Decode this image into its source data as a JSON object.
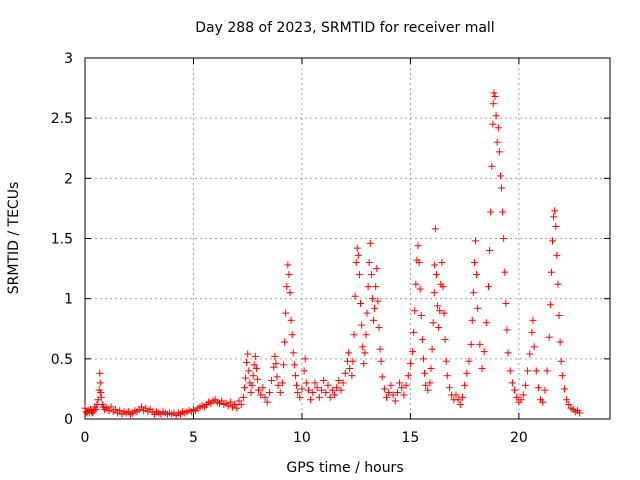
{
  "chart_data": {
    "type": "scatter",
    "title": "Day 288 of 2023, SRMTID for receiver mall",
    "xlabel": "GPS time / hours",
    "ylabel": "SRMTID / TECUs",
    "xlim": [
      0,
      24.2
    ],
    "ylim": [
      0,
      3
    ],
    "grid": true,
    "marker": "+",
    "color": "#ff0000",
    "x_ticks": [
      0,
      5,
      10,
      15,
      20
    ],
    "y_ticks": [
      0,
      0.5,
      1,
      1.5,
      2,
      2.5,
      3
    ],
    "x_tick_labels": [
      "0",
      "5",
      "10",
      "15",
      "20"
    ],
    "y_tick_labels": [
      "0",
      "0.5",
      "1",
      "1.5",
      "2",
      "2.5",
      "3"
    ],
    "series": [
      {
        "name": "SRMTID",
        "points": [
          [
            0.0,
            0.09
          ],
          [
            0.05,
            0.06
          ],
          [
            0.1,
            0.05
          ],
          [
            0.15,
            0.07
          ],
          [
            0.2,
            0.05
          ],
          [
            0.25,
            0.08
          ],
          [
            0.3,
            0.06
          ],
          [
            0.35,
            0.05
          ],
          [
            0.4,
            0.07
          ],
          [
            0.45,
            0.1
          ],
          [
            0.5,
            0.08
          ],
          [
            0.55,
            0.12
          ],
          [
            0.6,
            0.16
          ],
          [
            0.65,
            0.24
          ],
          [
            0.68,
            0.38
          ],
          [
            0.7,
            0.3
          ],
          [
            0.72,
            0.22
          ],
          [
            0.75,
            0.18
          ],
          [
            0.8,
            0.12
          ],
          [
            0.85,
            0.1
          ],
          [
            0.9,
            0.08
          ],
          [
            1.0,
            0.09
          ],
          [
            1.1,
            0.07
          ],
          [
            1.2,
            0.1
          ],
          [
            1.3,
            0.06
          ],
          [
            1.4,
            0.08
          ],
          [
            1.5,
            0.05
          ],
          [
            1.6,
            0.07
          ],
          [
            1.7,
            0.04
          ],
          [
            1.8,
            0.06
          ],
          [
            1.9,
            0.05
          ],
          [
            2.0,
            0.06
          ],
          [
            2.1,
            0.04
          ],
          [
            2.2,
            0.05
          ],
          [
            2.3,
            0.07
          ],
          [
            2.4,
            0.06
          ],
          [
            2.5,
            0.08
          ],
          [
            2.6,
            0.1
          ],
          [
            2.7,
            0.07
          ],
          [
            2.8,
            0.09
          ],
          [
            2.9,
            0.06
          ],
          [
            3.0,
            0.08
          ],
          [
            3.1,
            0.06
          ],
          [
            3.2,
            0.04
          ],
          [
            3.3,
            0.06
          ],
          [
            3.4,
            0.05
          ],
          [
            3.5,
            0.04
          ],
          [
            3.6,
            0.06
          ],
          [
            3.7,
            0.05
          ],
          [
            3.8,
            0.04
          ],
          [
            3.9,
            0.05
          ],
          [
            4.0,
            0.04
          ],
          [
            4.1,
            0.05
          ],
          [
            4.2,
            0.03
          ],
          [
            4.3,
            0.05
          ],
          [
            4.4,
            0.04
          ],
          [
            4.5,
            0.06
          ],
          [
            4.6,
            0.05
          ],
          [
            4.7,
            0.06
          ],
          [
            4.8,
            0.07
          ],
          [
            4.9,
            0.06
          ],
          [
            5.0,
            0.08
          ],
          [
            5.1,
            0.07
          ],
          [
            5.2,
            0.09
          ],
          [
            5.3,
            0.1
          ],
          [
            5.4,
            0.11
          ],
          [
            5.5,
            0.1
          ],
          [
            5.6,
            0.12
          ],
          [
            5.7,
            0.14
          ],
          [
            5.8,
            0.13
          ],
          [
            5.9,
            0.15
          ],
          [
            6.0,
            0.16
          ],
          [
            6.1,
            0.14
          ],
          [
            6.2,
            0.13
          ],
          [
            6.3,
            0.15
          ],
          [
            6.4,
            0.12
          ],
          [
            6.5,
            0.13
          ],
          [
            6.6,
            0.11
          ],
          [
            6.7,
            0.14
          ],
          [
            6.8,
            0.1
          ],
          [
            6.9,
            0.12
          ],
          [
            7.0,
            0.09
          ],
          [
            7.1,
            0.15
          ],
          [
            7.2,
            0.12
          ],
          [
            7.3,
            0.18
          ],
          [
            7.35,
            0.26
          ],
          [
            7.4,
            0.34
          ],
          [
            7.45,
            0.47
          ],
          [
            7.5,
            0.54
          ],
          [
            7.55,
            0.4
          ],
          [
            7.6,
            0.3
          ],
          [
            7.65,
            0.22
          ],
          [
            7.7,
            0.28
          ],
          [
            7.75,
            0.36
          ],
          [
            7.8,
            0.45
          ],
          [
            7.85,
            0.52
          ],
          [
            7.9,
            0.42
          ],
          [
            7.95,
            0.33
          ],
          [
            8.0,
            0.24
          ],
          [
            8.1,
            0.2
          ],
          [
            8.2,
            0.26
          ],
          [
            8.3,
            0.18
          ],
          [
            8.4,
            0.14
          ],
          [
            8.5,
            0.22
          ],
          [
            8.6,
            0.32
          ],
          [
            8.7,
            0.43
          ],
          [
            8.75,
            0.52
          ],
          [
            8.8,
            0.46
          ],
          [
            8.85,
            0.35
          ],
          [
            8.9,
            0.28
          ],
          [
            9.0,
            0.22
          ],
          [
            9.1,
            0.3
          ],
          [
            9.15,
            0.45
          ],
          [
            9.2,
            0.64
          ],
          [
            9.25,
            0.88
          ],
          [
            9.3,
            1.1
          ],
          [
            9.35,
            1.28
          ],
          [
            9.4,
            1.2
          ],
          [
            9.45,
            1.05
          ],
          [
            9.5,
            0.82
          ],
          [
            9.55,
            0.7
          ],
          [
            9.6,
            0.55
          ],
          [
            9.65,
            0.45
          ],
          [
            9.7,
            0.36
          ],
          [
            9.75,
            0.28
          ],
          [
            9.8,
            0.22
          ],
          [
            9.9,
            0.18
          ],
          [
            10.0,
            0.25
          ],
          [
            10.1,
            0.4
          ],
          [
            10.15,
            0.5
          ],
          [
            10.2,
            0.3
          ],
          [
            10.3,
            0.24
          ],
          [
            10.4,
            0.16
          ],
          [
            10.5,
            0.22
          ],
          [
            10.6,
            0.3
          ],
          [
            10.7,
            0.26
          ],
          [
            10.8,
            0.18
          ],
          [
            10.9,
            0.24
          ],
          [
            11.0,
            0.32
          ],
          [
            11.1,
            0.22
          ],
          [
            11.2,
            0.28
          ],
          [
            11.3,
            0.18
          ],
          [
            11.4,
            0.24
          ],
          [
            11.5,
            0.2
          ],
          [
            11.6,
            0.26
          ],
          [
            11.7,
            0.32
          ],
          [
            11.8,
            0.24
          ],
          [
            11.9,
            0.3
          ],
          [
            12.0,
            0.38
          ],
          [
            12.1,
            0.48
          ],
          [
            12.15,
            0.55
          ],
          [
            12.2,
            0.42
          ],
          [
            12.3,
            0.36
          ],
          [
            12.35,
            0.48
          ],
          [
            12.4,
            0.7
          ],
          [
            12.45,
            1.02
          ],
          [
            12.5,
            1.3
          ],
          [
            12.55,
            1.42
          ],
          [
            12.6,
            1.36
          ],
          [
            12.65,
            1.2
          ],
          [
            12.7,
            0.96
          ],
          [
            12.75,
            0.78
          ],
          [
            12.8,
            0.6
          ],
          [
            12.85,
            0.46
          ],
          [
            12.9,
            0.55
          ],
          [
            12.95,
            0.7
          ],
          [
            13.0,
            0.88
          ],
          [
            13.05,
            1.1
          ],
          [
            13.1,
            1.3
          ],
          [
            13.15,
            1.46
          ],
          [
            13.2,
            1.2
          ],
          [
            13.25,
            1.0
          ],
          [
            13.3,
            0.82
          ],
          [
            13.35,
            0.92
          ],
          [
            13.4,
            1.1
          ],
          [
            13.45,
            1.25
          ],
          [
            13.5,
            0.98
          ],
          [
            13.55,
            0.76
          ],
          [
            13.6,
            0.58
          ],
          [
            13.65,
            0.48
          ],
          [
            13.7,
            0.35
          ],
          [
            13.8,
            0.25
          ],
          [
            13.9,
            0.18
          ],
          [
            14.0,
            0.22
          ],
          [
            14.1,
            0.28
          ],
          [
            14.2,
            0.2
          ],
          [
            14.3,
            0.15
          ],
          [
            14.4,
            0.22
          ],
          [
            14.5,
            0.3
          ],
          [
            14.6,
            0.26
          ],
          [
            14.7,
            0.2
          ],
          [
            14.8,
            0.28
          ],
          [
            14.9,
            0.36
          ],
          [
            15.0,
            0.46
          ],
          [
            15.1,
            0.56
          ],
          [
            15.15,
            0.72
          ],
          [
            15.2,
            0.9
          ],
          [
            15.25,
            1.12
          ],
          [
            15.3,
            1.32
          ],
          [
            15.35,
            1.44
          ],
          [
            15.4,
            1.3
          ],
          [
            15.45,
            1.08
          ],
          [
            15.5,
            0.86
          ],
          [
            15.55,
            0.66
          ],
          [
            15.6,
            0.5
          ],
          [
            15.65,
            0.38
          ],
          [
            15.7,
            0.28
          ],
          [
            15.8,
            0.24
          ],
          [
            15.9,
            0.3
          ],
          [
            15.95,
            0.42
          ],
          [
            16.0,
            0.58
          ],
          [
            16.05,
            0.8
          ],
          [
            16.1,
            1.05
          ],
          [
            16.12,
            1.28
          ],
          [
            16.15,
            1.58
          ],
          [
            16.2,
            1.2
          ],
          [
            16.25,
            0.94
          ],
          [
            16.3,
            0.76
          ],
          [
            16.35,
            0.9
          ],
          [
            16.4,
            1.12
          ],
          [
            16.45,
            1.3
          ],
          [
            16.5,
            1.1
          ],
          [
            16.55,
            0.88
          ],
          [
            16.6,
            0.66
          ],
          [
            16.65,
            0.48
          ],
          [
            16.7,
            0.36
          ],
          [
            16.8,
            0.26
          ],
          [
            16.9,
            0.2
          ],
          [
            17.0,
            0.16
          ],
          [
            17.1,
            0.2
          ],
          [
            17.2,
            0.16
          ],
          [
            17.3,
            0.12
          ],
          [
            17.4,
            0.18
          ],
          [
            17.5,
            0.28
          ],
          [
            17.6,
            0.38
          ],
          [
            17.7,
            0.48
          ],
          [
            17.8,
            0.62
          ],
          [
            17.85,
            0.82
          ],
          [
            17.9,
            1.05
          ],
          [
            17.95,
            1.3
          ],
          [
            18.0,
            1.48
          ],
          [
            18.05,
            1.2
          ],
          [
            18.1,
            0.92
          ],
          [
            18.2,
            0.62
          ],
          [
            18.3,
            0.42
          ],
          [
            18.4,
            0.56
          ],
          [
            18.5,
            0.8
          ],
          [
            18.6,
            1.1
          ],
          [
            18.65,
            1.4
          ],
          [
            18.7,
            1.72
          ],
          [
            18.75,
            2.1
          ],
          [
            18.8,
            2.45
          ],
          [
            18.82,
            2.62
          ],
          [
            18.85,
            2.71
          ],
          [
            18.9,
            2.68
          ],
          [
            18.95,
            2.52
          ],
          [
            19.0,
            2.3
          ],
          [
            19.05,
            2.42
          ],
          [
            19.1,
            2.22
          ],
          [
            19.15,
            2.02
          ],
          [
            19.2,
            1.92
          ],
          [
            19.25,
            1.72
          ],
          [
            19.3,
            1.5
          ],
          [
            19.35,
            1.22
          ],
          [
            19.4,
            0.96
          ],
          [
            19.45,
            0.74
          ],
          [
            19.5,
            0.55
          ],
          [
            19.6,
            0.4
          ],
          [
            19.7,
            0.3
          ],
          [
            19.8,
            0.24
          ],
          [
            19.9,
            0.18
          ],
          [
            20.0,
            0.14
          ],
          [
            20.1,
            0.16
          ],
          [
            20.2,
            0.2
          ],
          [
            20.3,
            0.28
          ],
          [
            20.4,
            0.4
          ],
          [
            20.5,
            0.54
          ],
          [
            20.6,
            0.72
          ],
          [
            20.65,
            0.82
          ],
          [
            20.7,
            0.6
          ],
          [
            20.8,
            0.4
          ],
          [
            20.9,
            0.26
          ],
          [
            21.0,
            0.16
          ],
          [
            21.1,
            0.14
          ],
          [
            21.2,
            0.24
          ],
          [
            21.3,
            0.4
          ],
          [
            21.4,
            0.68
          ],
          [
            21.45,
            0.95
          ],
          [
            21.5,
            1.22
          ],
          [
            21.55,
            1.48
          ],
          [
            21.6,
            1.68
          ],
          [
            21.65,
            1.73
          ],
          [
            21.7,
            1.6
          ],
          [
            21.75,
            1.36
          ],
          [
            21.8,
            1.12
          ],
          [
            21.85,
            0.86
          ],
          [
            21.9,
            0.64
          ],
          [
            21.95,
            0.48
          ],
          [
            22.0,
            0.36
          ],
          [
            22.1,
            0.25
          ],
          [
            22.2,
            0.16
          ],
          [
            22.3,
            0.12
          ],
          [
            22.4,
            0.09
          ],
          [
            22.5,
            0.08
          ],
          [
            22.6,
            0.06
          ],
          [
            22.7,
            0.07
          ],
          [
            22.8,
            0.05
          ]
        ]
      }
    ]
  }
}
